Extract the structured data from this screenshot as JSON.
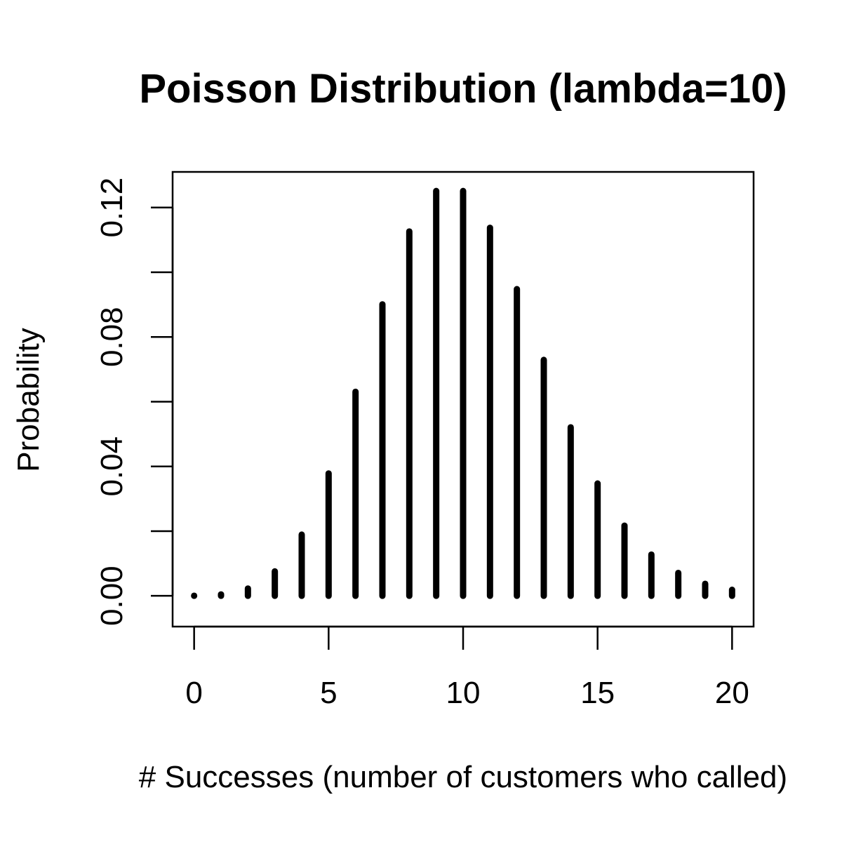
{
  "chart_data": {
    "type": "bar",
    "title": "Poisson Distribution (lambda=10)",
    "xlabel": "# Successes (number of customers who called)",
    "ylabel": "Probability",
    "x": [
      0,
      1,
      2,
      3,
      4,
      5,
      6,
      7,
      8,
      9,
      10,
      11,
      12,
      13,
      14,
      15,
      16,
      17,
      18,
      19,
      20
    ],
    "values": [
      4.54e-05,
      0.000454,
      0.00227,
      0.00757,
      0.01892,
      0.03783,
      0.06306,
      0.09008,
      0.1126,
      0.12511,
      0.12511,
      0.11374,
      0.09478,
      0.07291,
      0.05208,
      0.03472,
      0.0217,
      0.01276,
      0.00709,
      0.00373,
      0.00187
    ],
    "xlim": [
      -0.8,
      20.8
    ],
    "ylim": [
      -0.0095,
      0.131
    ],
    "xticks": [
      0,
      5,
      10,
      15,
      20
    ],
    "xtick_labels": [
      "0",
      "5",
      "10",
      "15",
      "20"
    ],
    "yticks": [
      0,
      0.02,
      0.04,
      0.06,
      0.08,
      0.1,
      0.12
    ],
    "ytick_labels": [
      "0.00",
      "",
      "0.04",
      "",
      "0.08",
      "",
      "0.12"
    ],
    "grid": false,
    "legend": "none",
    "color": "#000000"
  }
}
